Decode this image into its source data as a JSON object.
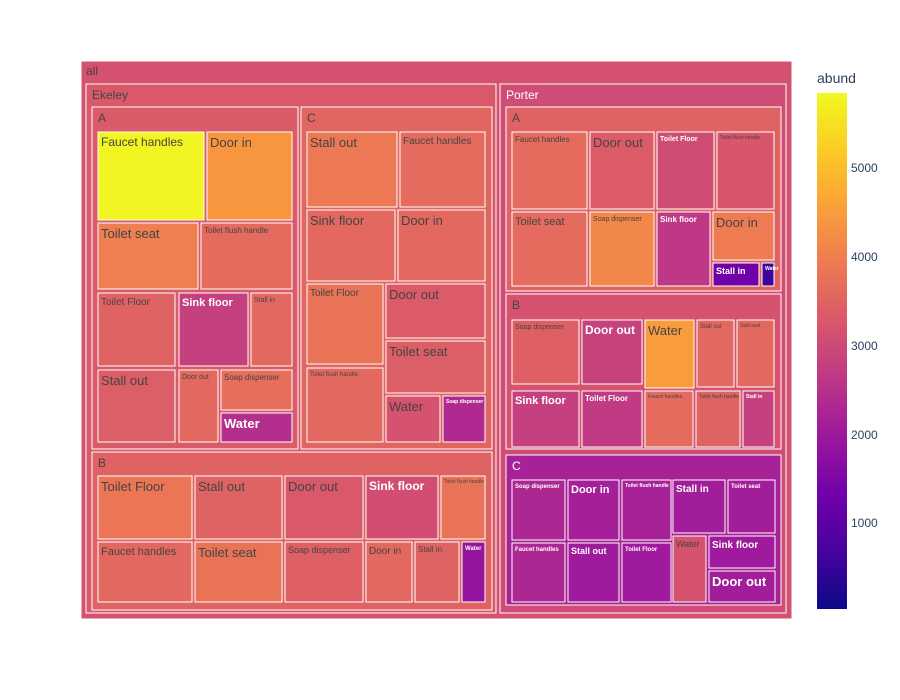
{
  "chart_data": {
    "type": "treemap",
    "root_label": "all",
    "color_title": "abund",
    "color_range": [
      50,
      5850
    ],
    "colorbar_ticks": [
      1000,
      2000,
      3000,
      4000,
      5000
    ],
    "colorscale": [
      "#0d0887",
      "#46039f",
      "#7201a8",
      "#9c179e",
      "#bd3786",
      "#d8576b",
      "#ed7953",
      "#fb9f3a",
      "#fdca26",
      "#f0f921"
    ],
    "nodes": [
      {
        "label": "Ekeley",
        "value": 3310,
        "children": [
          {
            "label": "A",
            "value": 3340,
            "children": [
              {
                "label": "Faucet handles",
                "value": 5800
              },
              {
                "label": "Door in",
                "value": 4400
              },
              {
                "label": "Toilet seat",
                "value": 4000
              },
              {
                "label": "Toilet flush handle",
                "value": 3650
              },
              {
                "label": "Toilet Floor",
                "value": 3500
              },
              {
                "label": "Sink floor",
                "value": 2800
              },
              {
                "label": "Stall in",
                "value": 3600
              },
              {
                "label": "Stall out",
                "value": 3400
              },
              {
                "label": "Door out",
                "value": 3600
              },
              {
                "label": "Soap dispenser",
                "value": 3700
              },
              {
                "label": "Water",
                "value": 2450
              }
            ]
          },
          {
            "label": "C",
            "value": 3560,
            "children": [
              {
                "label": "Stall out",
                "value": 3900
              },
              {
                "label": "Faucet handles",
                "value": 3650
              },
              {
                "label": "Sink floor",
                "value": 3600
              },
              {
                "label": "Door in",
                "value": 3600
              },
              {
                "label": "Toilet Floor",
                "value": 3800
              },
              {
                "label": "Door out",
                "value": 3350
              },
              {
                "label": "Toilet seat",
                "value": 3400
              },
              {
                "label": "Toilet flush handle",
                "value": 3600
              },
              {
                "label": "Water",
                "value": 3200
              },
              {
                "label": "Soap dispenser",
                "value": 2350
              }
            ]
          },
          {
            "label": "B",
            "value": 3500,
            "children": [
              {
                "label": "Toilet Floor",
                "value": 3850
              },
              {
                "label": "Stall out",
                "value": 3500
              },
              {
                "label": "Door out",
                "value": 3300
              },
              {
                "label": "Sink floor",
                "value": 3100
              },
              {
                "label": "Toilet flush handle",
                "value": 3800
              },
              {
                "label": "Faucet handles",
                "value": 3600
              },
              {
                "label": "Toilet seat",
                "value": 3800
              },
              {
                "label": "Soap dispenser",
                "value": 3450
              },
              {
                "label": "Door in",
                "value": 3600
              },
              {
                "label": "Stall in",
                "value": 3500
              },
              {
                "label": "Water",
                "value": 1900
              }
            ]
          }
        ]
      },
      {
        "label": "Porter",
        "value": 3050,
        "children": [
          {
            "label": "A",
            "value": 3500,
            "children": [
              {
                "label": "Faucet handles",
                "value": 3650
              },
              {
                "label": "Door out",
                "value": 3350
              },
              {
                "label": "Toilet Floor",
                "value": 3050
              },
              {
                "label": "Toilet flush handle",
                "value": 3250
              },
              {
                "label": "Toilet seat",
                "value": 3650
              },
              {
                "label": "Soap dispenser",
                "value": 4150
              },
              {
                "label": "Sink floor",
                "value": 2650
              },
              {
                "label": "Door in",
                "value": 3950
              },
              {
                "label": "Stall in",
                "value": 1300
              },
              {
                "label": "Water",
                "value": 600
              }
            ]
          },
          {
            "label": "B",
            "value": 3200,
            "children": [
              {
                "label": "Soap dispenser",
                "value": 3450
              },
              {
                "label": "Door out",
                "value": 2850
              },
              {
                "label": "Water",
                "value": 4500
              },
              {
                "label": "Stall out",
                "value": 3600
              },
              {
                "label": "Stall seat",
                "value": 3600
              },
              {
                "label": "Sink floor",
                "value": 2800
              },
              {
                "label": "Toilet Floor",
                "value": 2700
              },
              {
                "label": "Faucet handles",
                "value": 3650
              },
              {
                "label": "Toilet flush handle",
                "value": 3500
              },
              {
                "label": "Stall in",
                "value": 2800
              }
            ]
          },
          {
            "label": "C",
            "value": 2200,
            "children": [
              {
                "label": "Soap dispenser",
                "value": 2300
              },
              {
                "label": "Door in",
                "value": 2150
              },
              {
                "label": "Toilet flush handle",
                "value": 2200
              },
              {
                "label": "Stall in",
                "value": 2100
              },
              {
                "label": "Toilet seat",
                "value": 2100
              },
              {
                "label": "Faucet handles",
                "value": 2300
              },
              {
                "label": "Stall out",
                "value": 2050
              },
              {
                "label": "Toilet Floor",
                "value": 2050
              },
              {
                "label": "Water",
                "value": 3200
              },
              {
                "label": "Sink floor",
                "value": 2050
              },
              {
                "label": "Door out",
                "value": 2100
              }
            ]
          }
        ]
      }
    ]
  }
}
